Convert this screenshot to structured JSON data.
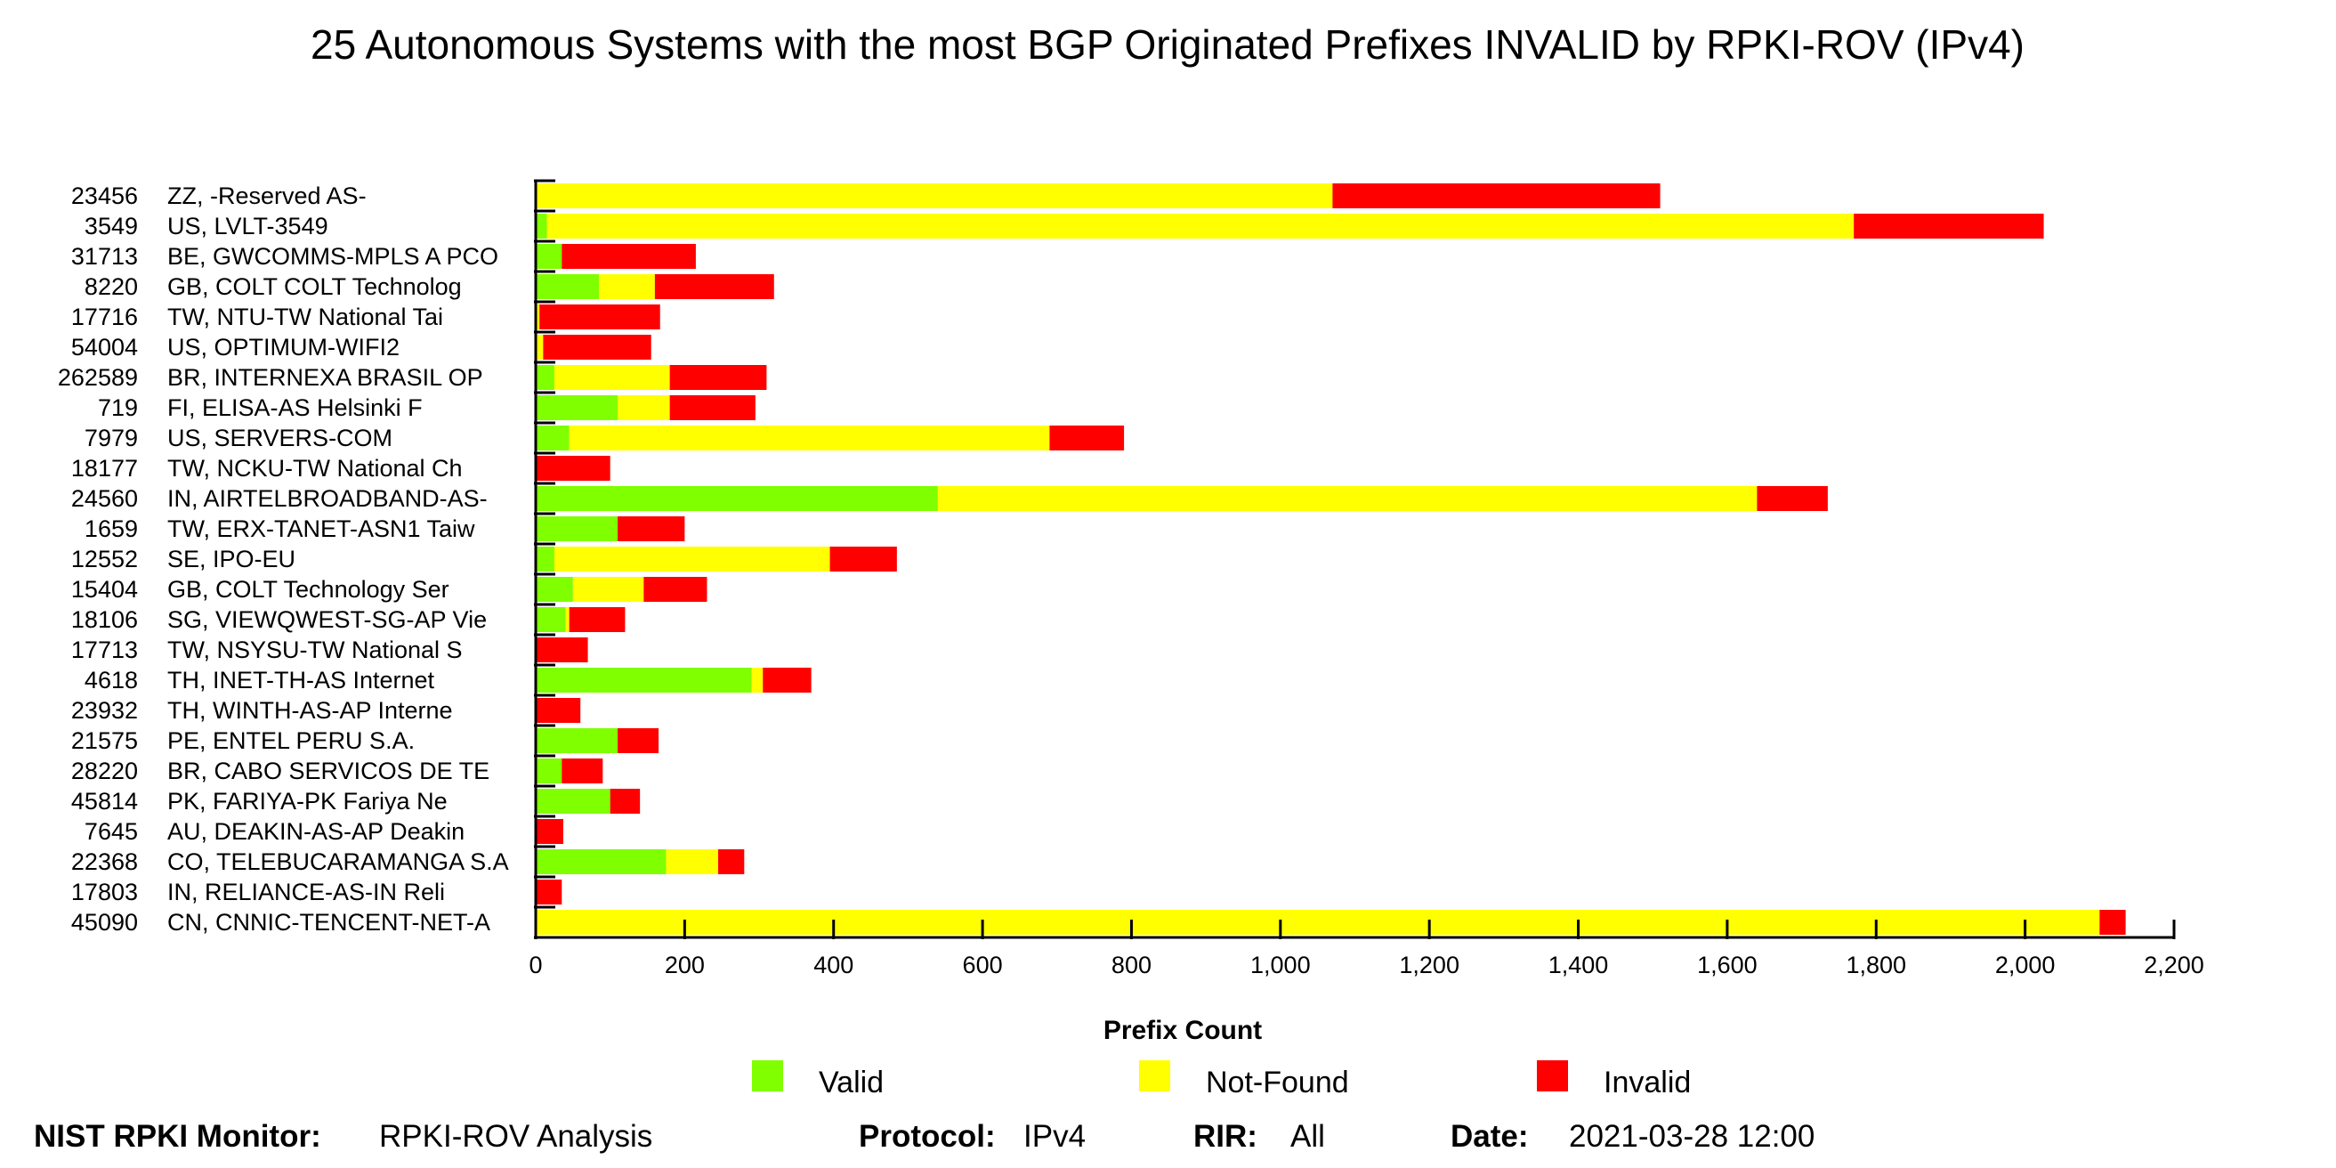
{
  "chart_data": {
    "type": "bar",
    "orientation": "horizontal",
    "stacked": true,
    "title": "25 Autonomous Systems with the most BGP Originated Prefixes INVALID by RPKI-ROV (IPv4)",
    "xlabel": "Prefix Count",
    "xlim": [
      0,
      2200
    ],
    "xticks": [
      "0",
      "200",
      "400",
      "600",
      "800",
      "1,000",
      "1,200",
      "1,400",
      "1,600",
      "1,800",
      "2,000",
      "2,200"
    ],
    "grid": false,
    "legend_position": "bottom",
    "categories": [
      {
        "asn": "23456",
        "name": "ZZ, -Reserved AS-"
      },
      {
        "asn": "3549",
        "name": "US, LVLT-3549"
      },
      {
        "asn": "31713",
        "name": "BE, GWCOMMS-MPLS A PCO"
      },
      {
        "asn": "8220",
        "name": "GB, COLT COLT Technolog"
      },
      {
        "asn": "17716",
        "name": "TW, NTU-TW National Tai"
      },
      {
        "asn": "54004",
        "name": "US, OPTIMUM-WIFI2"
      },
      {
        "asn": "262589",
        "name": "BR, INTERNEXA BRASIL OP"
      },
      {
        "asn": "719",
        "name": "FI, ELISA-AS Helsinki F"
      },
      {
        "asn": "7979",
        "name": "US, SERVERS-COM"
      },
      {
        "asn": "18177",
        "name": "TW, NCKU-TW National Ch"
      },
      {
        "asn": "24560",
        "name": "IN, AIRTELBROADBAND-AS-"
      },
      {
        "asn": "1659",
        "name": "TW, ERX-TANET-ASN1 Taiw"
      },
      {
        "asn": "12552",
        "name": "SE, IPO-EU"
      },
      {
        "asn": "15404",
        "name": "GB, COLT Technology Ser"
      },
      {
        "asn": "18106",
        "name": "SG, VIEWQWEST-SG-AP Vie"
      },
      {
        "asn": "17713",
        "name": "TW, NSYSU-TW National S"
      },
      {
        "asn": "4618",
        "name": "TH, INET-TH-AS Internet"
      },
      {
        "asn": "23932",
        "name": "TH, WINTH-AS-AP Interne"
      },
      {
        "asn": "21575",
        "name": "PE, ENTEL PERU S.A."
      },
      {
        "asn": "28220",
        "name": "BR, CABO SERVICOS DE TE"
      },
      {
        "asn": "45814",
        "name": "PK, FARIYA-PK Fariya Ne"
      },
      {
        "asn": "7645",
        "name": "AU, DEAKIN-AS-AP Deakin"
      },
      {
        "asn": "22368",
        "name": "CO, TELEBUCARAMANGA S.A"
      },
      {
        "asn": "17803",
        "name": "IN, RELIANCE-AS-IN Reli"
      },
      {
        "asn": "45090",
        "name": "CN, CNNIC-TENCENT-NET-A"
      }
    ],
    "series": [
      {
        "name": "Valid",
        "color": "#7fff00",
        "values": [
          0,
          15,
          35,
          85,
          0,
          0,
          25,
          110,
          45,
          0,
          540,
          110,
          25,
          50,
          40,
          0,
          290,
          0,
          110,
          35,
          100,
          0,
          175,
          0,
          0
        ]
      },
      {
        "name": "Not-Found",
        "color": "#ffff00",
        "values": [
          1070,
          1755,
          0,
          75,
          5,
          10,
          155,
          70,
          645,
          0,
          1100,
          0,
          370,
          95,
          5,
          0,
          15,
          0,
          0,
          0,
          0,
          0,
          70,
          0,
          2100
        ]
      },
      {
        "name": "Invalid",
        "color": "#ff0000",
        "values": [
          440,
          255,
          180,
          160,
          162,
          145,
          130,
          115,
          100,
          100,
          95,
          90,
          90,
          85,
          75,
          70,
          65,
          60,
          55,
          55,
          40,
          37,
          35,
          35,
          35
        ]
      }
    ]
  },
  "footer": {
    "monitor_label": "NIST RPKI Monitor:",
    "monitor_value": "RPKI-ROV Analysis",
    "protocol_label": "Protocol:",
    "protocol_value": "IPv4",
    "rir_label": "RIR:",
    "rir_value": "All",
    "date_label": "Date:",
    "date_value": "2021-03-28 12:00"
  }
}
